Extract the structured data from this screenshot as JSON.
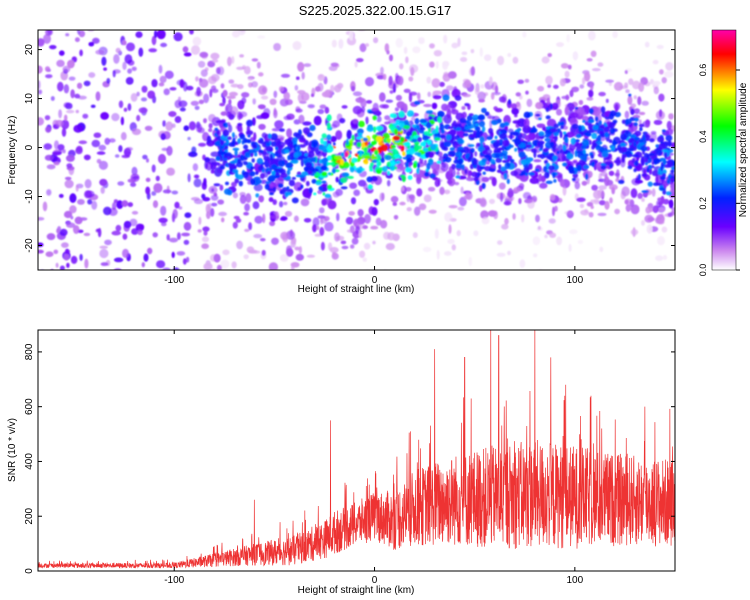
{
  "title": "S225.2025.322.00.15.G17",
  "chart_data": [
    {
      "type": "heatmap",
      "xlabel": "Height of straight line (km)",
      "ylabel": "Frequency (Hz)",
      "xlim": [
        -168,
        150
      ],
      "ylim": [
        -25,
        24
      ],
      "xticks": [
        -100,
        0,
        100
      ],
      "yticks": [
        -20,
        -10,
        0,
        10,
        20
      ],
      "colorbar": {
        "label": "Normalized spectral amplitude",
        "range": [
          0,
          0.72
        ],
        "ticks": [
          "0.0",
          "0.2",
          "0.4",
          "0.6"
        ],
        "colors": [
          "#ffffff",
          "#cc88ee",
          "#6a00ff",
          "#0022ff",
          "#00ffff",
          "#00ff00",
          "#ffff00",
          "#ff0000",
          "#ff00aa"
        ]
      },
      "ridge": {
        "x": [
          -168,
          -100,
          -70,
          -50,
          -30,
          -20,
          -10,
          0,
          10,
          20,
          40,
          60,
          80,
          100,
          120,
          150
        ],
        "center_freq": [
          0,
          0,
          -2,
          -3,
          -3,
          -2,
          -1,
          0,
          1,
          1,
          1,
          0,
          0,
          1,
          2,
          -4
        ]
      },
      "grid": false
    },
    {
      "type": "line",
      "xlabel": "Height of straight line (km)",
      "ylabel": "SNR (10 * v/v)",
      "xlim": [
        -168,
        150
      ],
      "ylim": [
        0,
        880
      ],
      "xticks": [
        -100,
        0,
        100
      ],
      "yticks": [
        0,
        200,
        400,
        600,
        800
      ],
      "color": "#ee3333",
      "envelope": {
        "x": [
          -168,
          -100,
          -80,
          -60,
          -40,
          -25,
          -20,
          -10,
          0,
          10,
          20,
          40,
          60,
          80,
          100,
          120,
          150
        ],
        "mean": [
          20,
          20,
          40,
          60,
          75,
          115,
          140,
          170,
          200,
          185,
          230,
          260,
          270,
          280,
          270,
          260,
          250
        ],
        "amp": [
          8,
          10,
          25,
          40,
          55,
          70,
          80,
          80,
          90,
          110,
          140,
          170,
          190,
          200,
          190,
          170,
          160
        ]
      },
      "spikes": [
        {
          "x": -60,
          "y": 260
        },
        {
          "x": -22,
          "y": 550
        },
        {
          "x": 18,
          "y": 510
        },
        {
          "x": 30,
          "y": 810
        },
        {
          "x": 45,
          "y": 780
        },
        {
          "x": 58,
          "y": 880
        },
        {
          "x": 62,
          "y": 860
        },
        {
          "x": 80,
          "y": 880
        },
        {
          "x": 88,
          "y": 780
        },
        {
          "x": 95,
          "y": 640
        },
        {
          "x": 108,
          "y": 640
        },
        {
          "x": 135,
          "y": 600
        }
      ],
      "grid": false
    }
  ]
}
